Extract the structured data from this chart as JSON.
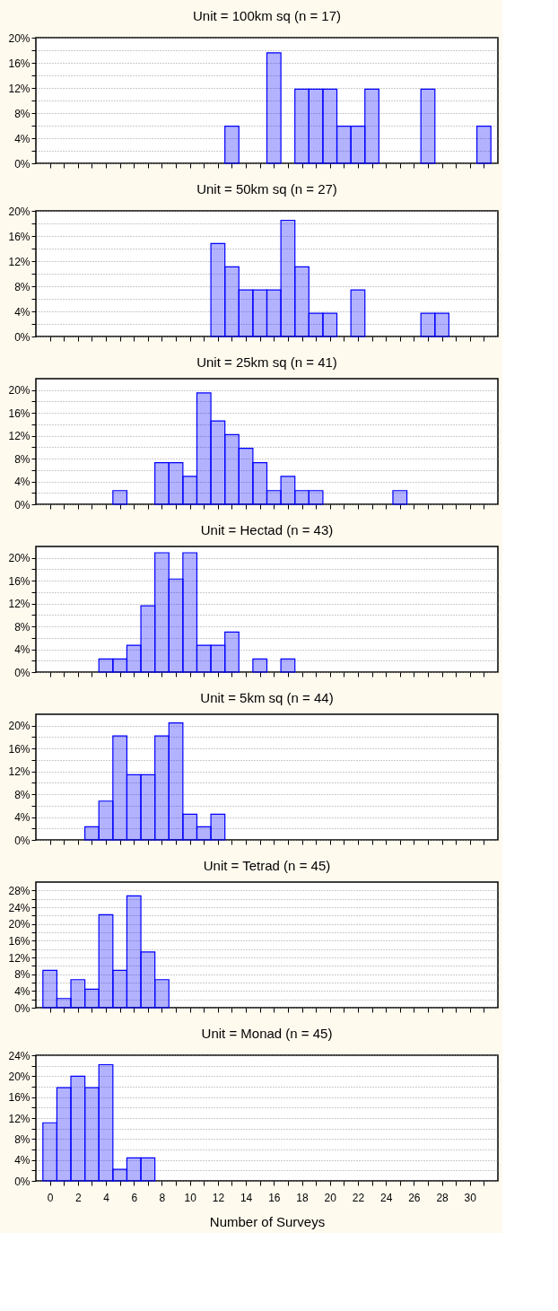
{
  "chart_data": [
    {
      "type": "histogram",
      "title": "Unit = 100km sq  (n = 17)",
      "color": "#0000ff",
      "grid": "y",
      "tick_labels": "y",
      "xlim": [
        -1,
        32
      ],
      "ylim": [
        0,
        20
      ],
      "bins": [
        12.5,
        13.5,
        14.5,
        15.5,
        16.5,
        17.5,
        18.5,
        19.5,
        20.5,
        21.5,
        22.5,
        23.5,
        24.5,
        25.5,
        26.5,
        27.5,
        28.5,
        29.5,
        30.5,
        31.5
      ],
      "values": [
        5.9,
        0,
        0,
        17.6,
        0,
        11.8,
        11.8,
        11.8,
        5.9,
        5.9,
        11.8,
        0,
        0,
        0,
        11.8,
        0,
        0,
        0,
        5.9
      ],
      "xticks": [
        {
          "value": 0,
          "label": null
        },
        {
          "value": 1,
          "label": null
        },
        {
          "value": 2,
          "label": null
        },
        {
          "value": 3,
          "label": null
        },
        {
          "value": 4,
          "label": null
        },
        {
          "value": 5,
          "label": null
        },
        {
          "value": 6,
          "label": null
        },
        {
          "value": 7,
          "label": null
        },
        {
          "value": 8,
          "label": null
        },
        {
          "value": 9,
          "label": null
        },
        {
          "value": 10,
          "label": null
        },
        {
          "value": 11,
          "label": null
        },
        {
          "value": 12,
          "label": null
        },
        {
          "value": 13,
          "label": null
        },
        {
          "value": 14,
          "label": null
        },
        {
          "value": 15,
          "label": null
        },
        {
          "value": 16,
          "label": null
        },
        {
          "value": 17,
          "label": null
        },
        {
          "value": 18,
          "label": null
        },
        {
          "value": 19,
          "label": null
        },
        {
          "value": 20,
          "label": null
        },
        {
          "value": 21,
          "label": null
        },
        {
          "value": 22,
          "label": null
        },
        {
          "value": 23,
          "label": null
        },
        {
          "value": 24,
          "label": null
        },
        {
          "value": 25,
          "label": null
        },
        {
          "value": 26,
          "label": null
        },
        {
          "value": 27,
          "label": null
        },
        {
          "value": 28,
          "label": null
        },
        {
          "value": 29,
          "label": null
        },
        {
          "value": 30,
          "label": null
        },
        {
          "value": 31,
          "label": null
        }
      ],
      "yticks": [
        {
          "value": 0,
          "label": "0%"
        },
        {
          "value": 2,
          "label": null
        },
        {
          "value": 4,
          "label": "4%"
        },
        {
          "value": 6,
          "label": null
        },
        {
          "value": 8,
          "label": "8%"
        },
        {
          "value": 10,
          "label": null
        },
        {
          "value": 12,
          "label": "12%"
        },
        {
          "value": 14,
          "label": null
        },
        {
          "value": 16,
          "label": "16%"
        },
        {
          "value": 18,
          "label": null
        },
        {
          "value": 20,
          "label": "20%"
        }
      ]
    },
    {
      "type": "histogram",
      "title": "Unit = 50km sq  (n = 27)",
      "color": "#0000ff",
      "grid": "y",
      "tick_labels": "y",
      "xlim": [
        -1,
        32
      ],
      "ylim": [
        0,
        20
      ],
      "bins": [
        11.5,
        12.5,
        13.5,
        14.5,
        15.5,
        16.5,
        17.5,
        18.5,
        19.5,
        20.5,
        21.5,
        22.5,
        23.5,
        24.5,
        25.5,
        26.5,
        27.5,
        28.5
      ],
      "values": [
        14.8,
        11.1,
        7.4,
        7.4,
        7.4,
        18.5,
        11.1,
        3.7,
        3.7,
        0,
        7.4,
        0,
        0,
        0,
        0,
        3.7,
        3.7
      ],
      "xticks": [
        {
          "value": 0,
          "label": null
        },
        {
          "value": 1,
          "label": null
        },
        {
          "value": 2,
          "label": null
        },
        {
          "value": 3,
          "label": null
        },
        {
          "value": 4,
          "label": null
        },
        {
          "value": 5,
          "label": null
        },
        {
          "value": 6,
          "label": null
        },
        {
          "value": 7,
          "label": null
        },
        {
          "value": 8,
          "label": null
        },
        {
          "value": 9,
          "label": null
        },
        {
          "value": 10,
          "label": null
        },
        {
          "value": 11,
          "label": null
        },
        {
          "value": 12,
          "label": null
        },
        {
          "value": 13,
          "label": null
        },
        {
          "value": 14,
          "label": null
        },
        {
          "value": 15,
          "label": null
        },
        {
          "value": 16,
          "label": null
        },
        {
          "value": 17,
          "label": null
        },
        {
          "value": 18,
          "label": null
        },
        {
          "value": 19,
          "label": null
        },
        {
          "value": 20,
          "label": null
        },
        {
          "value": 21,
          "label": null
        },
        {
          "value": 22,
          "label": null
        },
        {
          "value": 23,
          "label": null
        },
        {
          "value": 24,
          "label": null
        },
        {
          "value": 25,
          "label": null
        },
        {
          "value": 26,
          "label": null
        },
        {
          "value": 27,
          "label": null
        },
        {
          "value": 28,
          "label": null
        },
        {
          "value": 29,
          "label": null
        },
        {
          "value": 30,
          "label": null
        },
        {
          "value": 31,
          "label": null
        }
      ],
      "yticks": [
        {
          "value": 0,
          "label": "0%"
        },
        {
          "value": 2,
          "label": null
        },
        {
          "value": 4,
          "label": "4%"
        },
        {
          "value": 6,
          "label": null
        },
        {
          "value": 8,
          "label": "8%"
        },
        {
          "value": 10,
          "label": null
        },
        {
          "value": 12,
          "label": "12%"
        },
        {
          "value": 14,
          "label": null
        },
        {
          "value": 16,
          "label": "16%"
        },
        {
          "value": 18,
          "label": null
        },
        {
          "value": 20,
          "label": "20%"
        }
      ]
    },
    {
      "type": "histogram",
      "title": "Unit = 25km sq  (n = 41)",
      "color": "#0000ff",
      "grid": "y",
      "tick_labels": "y",
      "xlim": [
        -1,
        32
      ],
      "ylim": [
        0,
        22
      ],
      "bins": [
        4.5,
        5.5,
        6.5,
        7.5,
        8.5,
        9.5,
        10.5,
        11.5,
        12.5,
        13.5,
        14.5,
        15.5,
        16.5,
        17.5,
        18.5,
        19.5,
        20.5,
        21.5,
        22.5,
        23.5,
        24.5,
        25.5
      ],
      "values": [
        2.4,
        0,
        0,
        7.3,
        7.3,
        4.9,
        19.5,
        14.6,
        12.2,
        9.8,
        7.3,
        2.4,
        4.9,
        2.4,
        2.4,
        0,
        0,
        0,
        0,
        0,
        2.4
      ],
      "xticks": [
        {
          "value": 0,
          "label": null
        },
        {
          "value": 1,
          "label": null
        },
        {
          "value": 2,
          "label": null
        },
        {
          "value": 3,
          "label": null
        },
        {
          "value": 4,
          "label": null
        },
        {
          "value": 5,
          "label": null
        },
        {
          "value": 6,
          "label": null
        },
        {
          "value": 7,
          "label": null
        },
        {
          "value": 8,
          "label": null
        },
        {
          "value": 9,
          "label": null
        },
        {
          "value": 10,
          "label": null
        },
        {
          "value": 11,
          "label": null
        },
        {
          "value": 12,
          "label": null
        },
        {
          "value": 13,
          "label": null
        },
        {
          "value": 14,
          "label": null
        },
        {
          "value": 15,
          "label": null
        },
        {
          "value": 16,
          "label": null
        },
        {
          "value": 17,
          "label": null
        },
        {
          "value": 18,
          "label": null
        },
        {
          "value": 19,
          "label": null
        },
        {
          "value": 20,
          "label": null
        },
        {
          "value": 21,
          "label": null
        },
        {
          "value": 22,
          "label": null
        },
        {
          "value": 23,
          "label": null
        },
        {
          "value": 24,
          "label": null
        },
        {
          "value": 25,
          "label": null
        },
        {
          "value": 26,
          "label": null
        },
        {
          "value": 27,
          "label": null
        },
        {
          "value": 28,
          "label": null
        },
        {
          "value": 29,
          "label": null
        },
        {
          "value": 30,
          "label": null
        },
        {
          "value": 31,
          "label": null
        }
      ],
      "yticks": [
        {
          "value": 0,
          "label": "0%"
        },
        {
          "value": 2,
          "label": null
        },
        {
          "value": 4,
          "label": "4%"
        },
        {
          "value": 6,
          "label": null
        },
        {
          "value": 8,
          "label": "8%"
        },
        {
          "value": 10,
          "label": null
        },
        {
          "value": 12,
          "label": "12%"
        },
        {
          "value": 14,
          "label": null
        },
        {
          "value": 16,
          "label": "16%"
        },
        {
          "value": 18,
          "label": null
        },
        {
          "value": 20,
          "label": "20%"
        }
      ]
    },
    {
      "type": "histogram",
      "title": "Unit = Hectad  (n = 43)",
      "color": "#0000ff",
      "grid": "y",
      "tick_labels": "y",
      "xlim": [
        -1,
        32
      ],
      "ylim": [
        0,
        22
      ],
      "bins": [
        3.5,
        4.5,
        5.5,
        6.5,
        7.5,
        8.5,
        9.5,
        10.5,
        11.5,
        12.5,
        13.5,
        14.5,
        15.5,
        16.5,
        17.5
      ],
      "values": [
        2.3,
        2.3,
        4.7,
        11.6,
        20.9,
        16.3,
        20.9,
        4.7,
        4.7,
        7.0,
        0,
        2.3,
        0,
        2.3
      ],
      "xticks": [
        {
          "value": 0,
          "label": null
        },
        {
          "value": 1,
          "label": null
        },
        {
          "value": 2,
          "label": null
        },
        {
          "value": 3,
          "label": null
        },
        {
          "value": 4,
          "label": null
        },
        {
          "value": 5,
          "label": null
        },
        {
          "value": 6,
          "label": null
        },
        {
          "value": 7,
          "label": null
        },
        {
          "value": 8,
          "label": null
        },
        {
          "value": 9,
          "label": null
        },
        {
          "value": 10,
          "label": null
        },
        {
          "value": 11,
          "label": null
        },
        {
          "value": 12,
          "label": null
        },
        {
          "value": 13,
          "label": null
        },
        {
          "value": 14,
          "label": null
        },
        {
          "value": 15,
          "label": null
        },
        {
          "value": 16,
          "label": null
        },
        {
          "value": 17,
          "label": null
        },
        {
          "value": 18,
          "label": null
        },
        {
          "value": 19,
          "label": null
        },
        {
          "value": 20,
          "label": null
        },
        {
          "value": 21,
          "label": null
        },
        {
          "value": 22,
          "label": null
        },
        {
          "value": 23,
          "label": null
        },
        {
          "value": 24,
          "label": null
        },
        {
          "value": 25,
          "label": null
        },
        {
          "value": 26,
          "label": null
        },
        {
          "value": 27,
          "label": null
        },
        {
          "value": 28,
          "label": null
        },
        {
          "value": 29,
          "label": null
        },
        {
          "value": 30,
          "label": null
        },
        {
          "value": 31,
          "label": null
        }
      ],
      "yticks": [
        {
          "value": 0,
          "label": "0%"
        },
        {
          "value": 2,
          "label": null
        },
        {
          "value": 4,
          "label": "4%"
        },
        {
          "value": 6,
          "label": null
        },
        {
          "value": 8,
          "label": "8%"
        },
        {
          "value": 10,
          "label": null
        },
        {
          "value": 12,
          "label": "12%"
        },
        {
          "value": 14,
          "label": null
        },
        {
          "value": 16,
          "label": "16%"
        },
        {
          "value": 18,
          "label": null
        },
        {
          "value": 20,
          "label": "20%"
        }
      ]
    },
    {
      "type": "histogram",
      "title": "Unit = 5km sq  (n = 44)",
      "color": "#0000ff",
      "grid": "y",
      "tick_labels": "y",
      "xlim": [
        -1,
        32
      ],
      "ylim": [
        0,
        22
      ],
      "bins": [
        2.5,
        3.5,
        4.5,
        5.5,
        6.5,
        7.5,
        8.5,
        9.5,
        10.5,
        11.5,
        12.5
      ],
      "values": [
        2.3,
        6.8,
        18.2,
        11.4,
        11.4,
        18.2,
        20.5,
        4.5,
        2.3,
        4.5
      ],
      "xticks": [
        {
          "value": 0,
          "label": null
        },
        {
          "value": 1,
          "label": null
        },
        {
          "value": 2,
          "label": null
        },
        {
          "value": 3,
          "label": null
        },
        {
          "value": 4,
          "label": null
        },
        {
          "value": 5,
          "label": null
        },
        {
          "value": 6,
          "label": null
        },
        {
          "value": 7,
          "label": null
        },
        {
          "value": 8,
          "label": null
        },
        {
          "value": 9,
          "label": null
        },
        {
          "value": 10,
          "label": null
        },
        {
          "value": 11,
          "label": null
        },
        {
          "value": 12,
          "label": null
        },
        {
          "value": 13,
          "label": null
        },
        {
          "value": 14,
          "label": null
        },
        {
          "value": 15,
          "label": null
        },
        {
          "value": 16,
          "label": null
        },
        {
          "value": 17,
          "label": null
        },
        {
          "value": 18,
          "label": null
        },
        {
          "value": 19,
          "label": null
        },
        {
          "value": 20,
          "label": null
        },
        {
          "value": 21,
          "label": null
        },
        {
          "value": 22,
          "label": null
        },
        {
          "value": 23,
          "label": null
        },
        {
          "value": 24,
          "label": null
        },
        {
          "value": 25,
          "label": null
        },
        {
          "value": 26,
          "label": null
        },
        {
          "value": 27,
          "label": null
        },
        {
          "value": 28,
          "label": null
        },
        {
          "value": 29,
          "label": null
        },
        {
          "value": 30,
          "label": null
        },
        {
          "value": 31,
          "label": null
        }
      ],
      "yticks": [
        {
          "value": 0,
          "label": "0%"
        },
        {
          "value": 2,
          "label": null
        },
        {
          "value": 4,
          "label": "4%"
        },
        {
          "value": 6,
          "label": null
        },
        {
          "value": 8,
          "label": "8%"
        },
        {
          "value": 10,
          "label": null
        },
        {
          "value": 12,
          "label": "12%"
        },
        {
          "value": 14,
          "label": null
        },
        {
          "value": 16,
          "label": "16%"
        },
        {
          "value": 18,
          "label": null
        },
        {
          "value": 20,
          "label": "20%"
        }
      ]
    },
    {
      "type": "histogram",
      "title": "Unit = Tetrad  (n = 45)",
      "color": "#0000ff",
      "grid": "y",
      "tick_labels": "y",
      "xlim": [
        -1,
        32
      ],
      "ylim": [
        0,
        30
      ],
      "bins": [
        -0.5,
        0.5,
        1.5,
        2.5,
        3.5,
        4.5,
        5.5,
        6.5,
        7.5,
        8.5
      ],
      "values": [
        8.9,
        2.2,
        6.7,
        4.4,
        22.2,
        8.9,
        26.7,
        13.3,
        6.7
      ],
      "xticks": [
        {
          "value": 0,
          "label": null
        },
        {
          "value": 1,
          "label": null
        },
        {
          "value": 2,
          "label": null
        },
        {
          "value": 3,
          "label": null
        },
        {
          "value": 4,
          "label": null
        },
        {
          "value": 5,
          "label": null
        },
        {
          "value": 6,
          "label": null
        },
        {
          "value": 7,
          "label": null
        },
        {
          "value": 8,
          "label": null
        },
        {
          "value": 9,
          "label": null
        },
        {
          "value": 10,
          "label": null
        },
        {
          "value": 11,
          "label": null
        },
        {
          "value": 12,
          "label": null
        },
        {
          "value": 13,
          "label": null
        },
        {
          "value": 14,
          "label": null
        },
        {
          "value": 15,
          "label": null
        },
        {
          "value": 16,
          "label": null
        },
        {
          "value": 17,
          "label": null
        },
        {
          "value": 18,
          "label": null
        },
        {
          "value": 19,
          "label": null
        },
        {
          "value": 20,
          "label": null
        },
        {
          "value": 21,
          "label": null
        },
        {
          "value": 22,
          "label": null
        },
        {
          "value": 23,
          "label": null
        },
        {
          "value": 24,
          "label": null
        },
        {
          "value": 25,
          "label": null
        },
        {
          "value": 26,
          "label": null
        },
        {
          "value": 27,
          "label": null
        },
        {
          "value": 28,
          "label": null
        },
        {
          "value": 29,
          "label": null
        },
        {
          "value": 30,
          "label": null
        },
        {
          "value": 31,
          "label": null
        }
      ],
      "yticks": [
        {
          "value": 0,
          "label": "0%"
        },
        {
          "value": 2,
          "label": null
        },
        {
          "value": 4,
          "label": "4%"
        },
        {
          "value": 6,
          "label": null
        },
        {
          "value": 8,
          "label": "8%"
        },
        {
          "value": 10,
          "label": null
        },
        {
          "value": 12,
          "label": "12%"
        },
        {
          "value": 14,
          "label": null
        },
        {
          "value": 16,
          "label": "16%"
        },
        {
          "value": 18,
          "label": null
        },
        {
          "value": 20,
          "label": "20%"
        },
        {
          "value": 22,
          "label": null
        },
        {
          "value": 24,
          "label": "24%"
        },
        {
          "value": 26,
          "label": null
        },
        {
          "value": 28,
          "label": "28%"
        }
      ]
    },
    {
      "type": "histogram",
      "title": "Unit = Monad  (n = 45)",
      "xlabel": "Number of Surveys",
      "color": "#0000ff",
      "grid": "y",
      "xlim": [
        -1,
        32
      ],
      "ylim": [
        0,
        24
      ],
      "bins": [
        -0.5,
        0.5,
        1.5,
        2.5,
        3.5,
        4.5,
        5.5,
        6.5,
        7.5
      ],
      "values": [
        11.1,
        17.8,
        20.0,
        17.8,
        22.2,
        2.2,
        4.4,
        4.4
      ],
      "xticks": [
        {
          "value": 0,
          "label": "0"
        },
        {
          "value": 1,
          "label": null
        },
        {
          "value": 2,
          "label": "2"
        },
        {
          "value": 3,
          "label": null
        },
        {
          "value": 4,
          "label": "4"
        },
        {
          "value": 5,
          "label": null
        },
        {
          "value": 6,
          "label": "6"
        },
        {
          "value": 7,
          "label": null
        },
        {
          "value": 8,
          "label": "8"
        },
        {
          "value": 9,
          "label": null
        },
        {
          "value": 10,
          "label": "10"
        },
        {
          "value": 11,
          "label": null
        },
        {
          "value": 12,
          "label": "12"
        },
        {
          "value": 13,
          "label": null
        },
        {
          "value": 14,
          "label": "14"
        },
        {
          "value": 15,
          "label": null
        },
        {
          "value": 16,
          "label": "16"
        },
        {
          "value": 17,
          "label": null
        },
        {
          "value": 18,
          "label": "18"
        },
        {
          "value": 19,
          "label": null
        },
        {
          "value": 20,
          "label": "20"
        },
        {
          "value": 21,
          "label": null
        },
        {
          "value": 22,
          "label": "22"
        },
        {
          "value": 23,
          "label": null
        },
        {
          "value": 24,
          "label": "24"
        },
        {
          "value": 25,
          "label": null
        },
        {
          "value": 26,
          "label": "26"
        },
        {
          "value": 27,
          "label": null
        },
        {
          "value": 28,
          "label": "28"
        },
        {
          "value": 29,
          "label": null
        },
        {
          "value": 30,
          "label": "30"
        },
        {
          "value": 31,
          "label": null
        }
      ],
      "yticks": [
        {
          "value": 0,
          "label": "0%"
        },
        {
          "value": 2,
          "label": null
        },
        {
          "value": 4,
          "label": "4%"
        },
        {
          "value": 6,
          "label": null
        },
        {
          "value": 8,
          "label": "8%"
        },
        {
          "value": 10,
          "label": null
        },
        {
          "value": 12,
          "label": "12%"
        },
        {
          "value": 14,
          "label": null
        },
        {
          "value": 16,
          "label": "16%"
        },
        {
          "value": 18,
          "label": null
        },
        {
          "value": 20,
          "label": "20%"
        },
        {
          "value": 22,
          "label": null
        },
        {
          "value": 24,
          "label": "24%"
        }
      ]
    }
  ]
}
